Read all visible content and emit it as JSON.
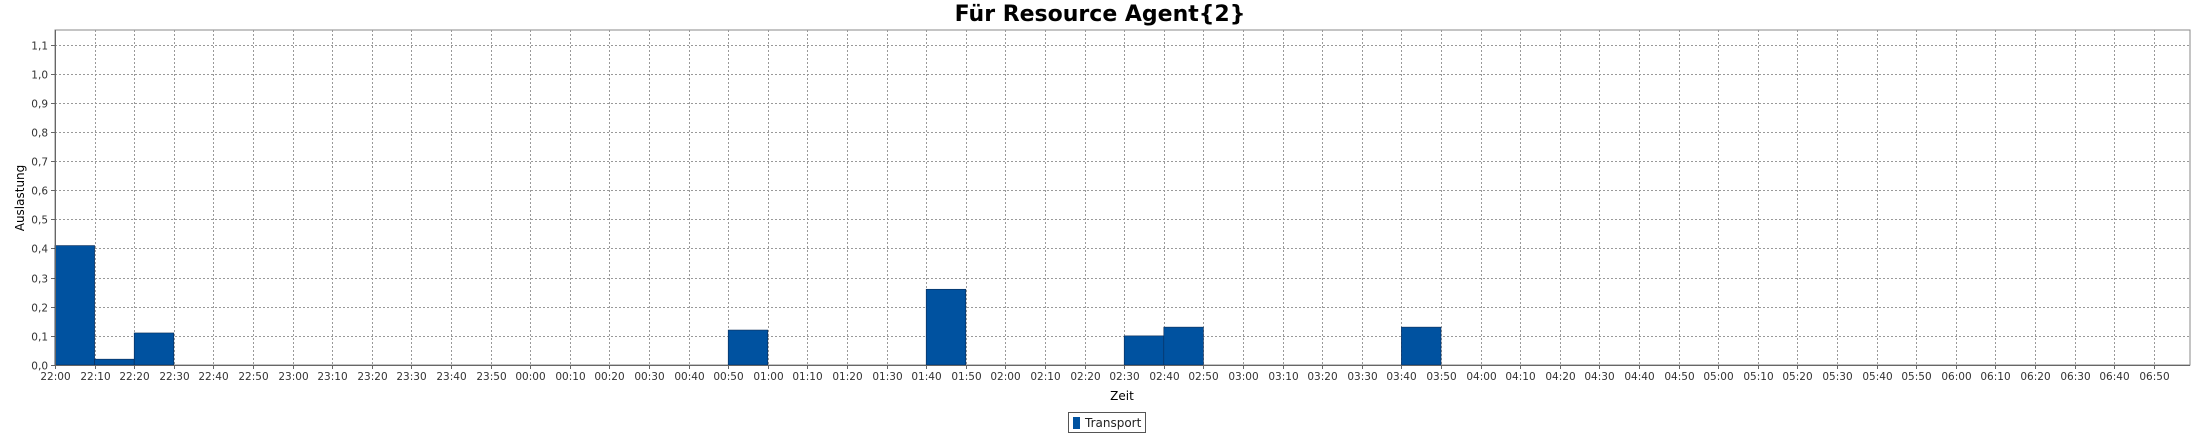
{
  "chart_data": {
    "type": "bar",
    "title": "Für Resource Agent{2}",
    "xlabel": "Zeit",
    "ylabel": "Auslastung",
    "ylim": [
      0,
      1.15
    ],
    "yticks": [
      "0,0",
      "0,1",
      "0,2",
      "0,3",
      "0,4",
      "0,5",
      "0,6",
      "0,7",
      "0,8",
      "0,9",
      "1,0",
      "1,1"
    ],
    "categories": [
      "22:00",
      "22:10",
      "22:20",
      "22:30",
      "22:40",
      "22:50",
      "23:00",
      "23:10",
      "23:20",
      "23:30",
      "23:40",
      "23:50",
      "00:00",
      "00:10",
      "00:20",
      "00:30",
      "00:40",
      "00:50",
      "01:00",
      "01:10",
      "01:20",
      "01:30",
      "01:40",
      "01:50",
      "02:00",
      "02:10",
      "02:20",
      "02:30",
      "02:40",
      "02:50",
      "03:00",
      "03:10",
      "03:20",
      "03:30",
      "03:40",
      "03:50",
      "04:00",
      "04:10",
      "04:20",
      "04:30",
      "04:40",
      "04:50",
      "05:00",
      "05:10",
      "05:20",
      "05:30",
      "05:40",
      "05:50",
      "06:00",
      "06:10",
      "06:20",
      "06:30",
      "06:40",
      "06:50"
    ],
    "series": [
      {
        "name": "Transport",
        "color": "#0052a0",
        "values": [
          0.41,
          0.02,
          0.11,
          0,
          0,
          0,
          0,
          0,
          0,
          0,
          0,
          0,
          0,
          0,
          0,
          0,
          0,
          0.12,
          0,
          0,
          0,
          0,
          0.26,
          0,
          0,
          0,
          0,
          0.1,
          0.13,
          0,
          0,
          0,
          0,
          0,
          0.13,
          0,
          0,
          0,
          0,
          0,
          0,
          0,
          0,
          0,
          0,
          0,
          0,
          0,
          0,
          0,
          0,
          0,
          0,
          0
        ]
      }
    ],
    "grid": true,
    "legend_position": "bottom-center"
  }
}
